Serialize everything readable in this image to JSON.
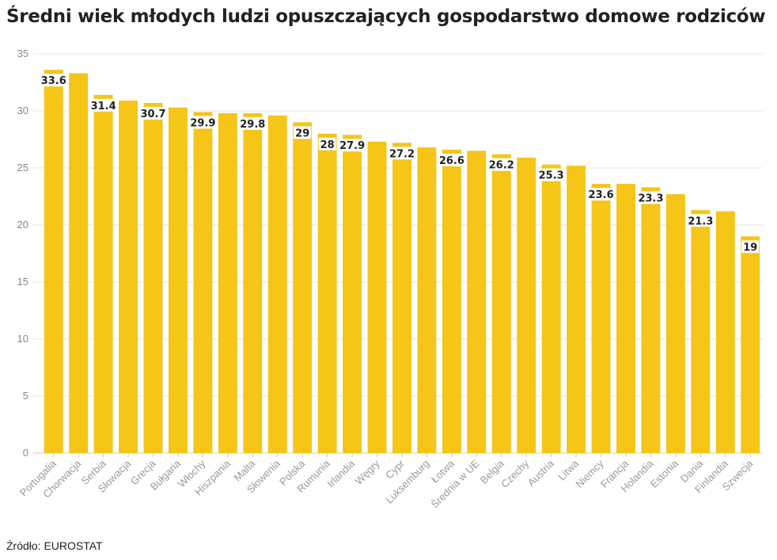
{
  "title": "Średni wiek młodych ludzi opuszczających gospodarstwo domowe rodziców",
  "source": "Źródło: EUROSTAT",
  "colors": {
    "bar": "#f5c518",
    "grid": "#e6e6e6",
    "label_bg": "#ffffff"
  },
  "chart_data": {
    "type": "bar",
    "title": "Średni wiek młodych ludzi opuszczających gospodarstwo domowe rodziców",
    "xlabel": "",
    "ylabel": "",
    "ylim": [
      0,
      35
    ],
    "yticks": [
      0,
      5,
      10,
      15,
      20,
      25,
      30,
      35
    ],
    "grid": true,
    "categories": [
      "Portugalia",
      "Chorwacja",
      "Serbia",
      "Słowacja",
      "Grecja",
      "Bułgaria",
      "Włochy",
      "Hiszpania",
      "Malta",
      "Słowenia",
      "Polska",
      "Rumunia",
      "Irlandia",
      "Węgry",
      "Cypr",
      "Luksemburg",
      "Łotwa",
      "Średnia w UE",
      "Belgia",
      "Czechy",
      "Austria",
      "Litwa",
      "Niemcy",
      "Francja",
      "Holandia",
      "Estonia",
      "Dania",
      "Finlandia",
      "Szwecja"
    ],
    "values": [
      33.6,
      33.3,
      31.4,
      30.9,
      30.7,
      30.3,
      29.9,
      29.8,
      29.8,
      29.6,
      29,
      28,
      27.9,
      27.3,
      27.2,
      26.8,
      26.6,
      26.5,
      26.2,
      25.9,
      25.3,
      25.2,
      23.6,
      23.6,
      23.3,
      22.7,
      21.3,
      21.2,
      19
    ],
    "labels": [
      "33.6",
      "",
      "31.4",
      "",
      "30.7",
      "",
      "29.9",
      "",
      "29.8",
      "",
      "29",
      "28",
      "27.9",
      "",
      "27.2",
      "",
      "26.6",
      "",
      "26.2",
      "",
      "25.3",
      "",
      "23.6",
      "",
      "23.3",
      "",
      "21.3",
      "",
      "19"
    ]
  }
}
